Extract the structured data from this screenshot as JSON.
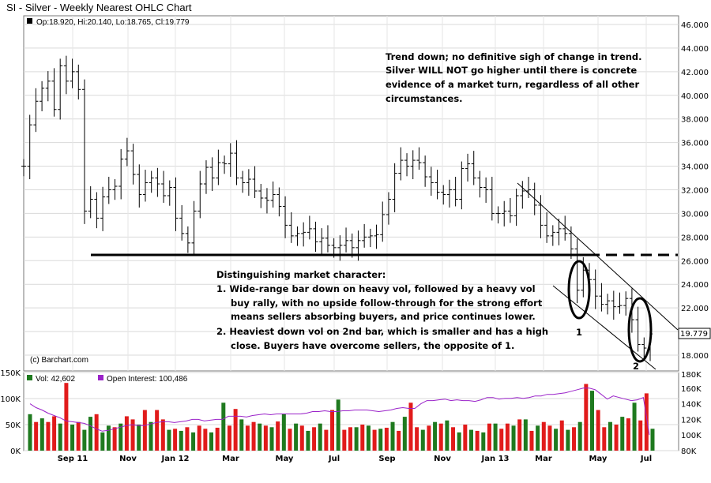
{
  "chart_data": {
    "type": "ohlc",
    "title": "SI - Silver - Weekly Nearest OHLC Chart",
    "legend_ohlc": "Op:18.920, Hi:20.140, Lo:18.765, Cl:19.779",
    "last_price_label": "19.779",
    "credit": "(c) Barchart.com",
    "price_axis": {
      "ticks": [
        "46.000",
        "44.000",
        "42.000",
        "40.000",
        "38.000",
        "36.000",
        "34.000",
        "32.000",
        "30.000",
        "28.000",
        "26.000",
        "24.000",
        "22.000",
        "20.000",
        "18.000"
      ],
      "min": 17.0,
      "max": 46.8
    },
    "x_ticks": [
      "Sep 11",
      "Nov",
      "Jan 12",
      "Mar",
      "May",
      "Jul",
      "Sep",
      "Nov",
      "Jan 13",
      "Mar",
      "May",
      "Jul"
    ],
    "price_close": [
      34.0,
      37.5,
      39.5,
      40.6,
      41.2,
      38.8,
      42.5,
      41.2,
      42.0,
      40.5,
      30.2,
      31.2,
      29.6,
      31.4,
      32.0,
      32.3,
      34.6,
      35.3,
      33.3,
      31.6,
      32.6,
      33.0,
      32.5,
      31.5,
      32.2,
      29.6,
      28.3,
      27.5,
      30.2,
      32.5,
      33.9,
      33.0,
      34.3,
      34.2,
      35.1,
      33.0,
      32.6,
      32.9,
      31.9,
      31.3,
      31.1,
      31.6,
      30.6,
      29.0,
      28.1,
      28.3,
      28.4,
      28.7,
      27.6,
      27.9,
      27.3,
      27.1,
      27.3,
      27.7,
      27.1,
      27.7,
      28.0,
      28.1,
      28.2,
      29.9,
      31.2,
      33.4,
      34.5,
      34.0,
      34.5,
      34.3,
      33.1,
      32.6,
      31.8,
      31.6,
      32.0,
      31.2,
      33.8,
      34.2,
      33.0,
      32.2,
      32.0,
      30.0,
      30.0,
      30.2,
      29.8,
      31.5,
      31.9,
      32.0,
      30.7,
      29.0,
      28.1,
      28.4,
      28.7,
      28.3,
      27.0,
      23.5,
      25.2,
      24.4,
      23.0,
      22.3,
      22.6,
      22.1,
      22.2,
      22.8,
      21.0,
      18.9,
      18.6,
      19.8
    ],
    "volume_axis": {
      "ticks": [
        "150K",
        "100K",
        "50K",
        "0K"
      ],
      "max": 150
    },
    "volume": {
      "label": "Vol: 42,602",
      "values": [
        70,
        55,
        62,
        55,
        66,
        52,
        130,
        50,
        55,
        40,
        65,
        70,
        35,
        48,
        45,
        52,
        66,
        60,
        50,
        78,
        55,
        78,
        60,
        40,
        42,
        38,
        45,
        35,
        48,
        42,
        35,
        44,
        92,
        48,
        80,
        60,
        48,
        55,
        52,
        48,
        45,
        56,
        70,
        42,
        52,
        48,
        38,
        45,
        52,
        40,
        78,
        98,
        40,
        45,
        45,
        50,
        48,
        40,
        42,
        44,
        55,
        38,
        65,
        92,
        45,
        40,
        48,
        55,
        52,
        58,
        45,
        35,
        50,
        40,
        38,
        35,
        52,
        52,
        42,
        52,
        48,
        60,
        60,
        38,
        48,
        55,
        48,
        42,
        58,
        40,
        45,
        55,
        128,
        115,
        78,
        45,
        55,
        50,
        65,
        62,
        92,
        58,
        110,
        42
      ],
      "colors": [
        "g",
        "r",
        "g",
        "r",
        "r",
        "g",
        "r",
        "g",
        "r",
        "g",
        "g",
        "r",
        "g",
        "g",
        "r",
        "g",
        "r",
        "r",
        "g",
        "r",
        "g",
        "r",
        "r",
        "g",
        "r",
        "g",
        "r",
        "g",
        "r",
        "r",
        "g",
        "r",
        "g",
        "r",
        "r",
        "g",
        "r",
        "r",
        "g",
        "r",
        "g",
        "r",
        "g",
        "r",
        "g",
        "r",
        "g",
        "r",
        "g",
        "r",
        "r",
        "g",
        "r",
        "r",
        "g",
        "r",
        "g",
        "r",
        "g",
        "r",
        "g",
        "r",
        "g",
        "r",
        "r",
        "g",
        "r",
        "g",
        "r",
        "g",
        "r",
        "g",
        "r",
        "g",
        "r",
        "g",
        "r",
        "g",
        "r",
        "r",
        "g",
        "r",
        "g",
        "r",
        "g",
        "r",
        "r",
        "g",
        "r",
        "g",
        "r",
        "g",
        "r",
        "g",
        "r",
        "r",
        "g",
        "r",
        "g",
        "r",
        "g",
        "r",
        "r",
        "g"
      ]
    },
    "open_interest": {
      "label": "Open Interest: 100,486",
      "axis_ticks": [
        "180K",
        "160K",
        "140K",
        "120K",
        "100K",
        "80K"
      ],
      "values": [
        140,
        135,
        132,
        128,
        125,
        122,
        118,
        117,
        116,
        115,
        112,
        108,
        105,
        106,
        108,
        110,
        112,
        113,
        112,
        112,
        114,
        116,
        117,
        117,
        116,
        117,
        118,
        120,
        120,
        118,
        119,
        120,
        120,
        124,
        124,
        124,
        123,
        125,
        126,
        127,
        126,
        127,
        127,
        127,
        127,
        127,
        128,
        130,
        130,
        131,
        130,
        130,
        131,
        131,
        132,
        132,
        132,
        131,
        130,
        131,
        132,
        134,
        135,
        134,
        134,
        140,
        144,
        144,
        145,
        146,
        144,
        145,
        144,
        144,
        143,
        145,
        148,
        148,
        146,
        147,
        147,
        148,
        147,
        148,
        150,
        150,
        152,
        152,
        153,
        154,
        156,
        158,
        160,
        160,
        158,
        152,
        146,
        150,
        148,
        146,
        144,
        145,
        148,
        100
      ]
    }
  },
  "annotations": {
    "top_note": [
      "Trend down; no definitive sigh of change in trend.",
      "Silver WILL NOT go higher until there is concrete",
      "evidence of a market turn, regardless of all other",
      "circumstances."
    ],
    "middle_note": [
      "Distinguishing market character:",
      "1. Wide-range bar down on heavy vol, followed by a heavy vol",
      "buy rally, with no upside follow-through for the strong effort",
      "means sellers absorbing buyers, and price continues lower.",
      "2. Heaviest down vol on 2nd bar, which is smaller and has a high",
      "close.  Buyers have overcome sellers, the opposite of 1."
    ],
    "label_1": "1",
    "label_2": "2"
  },
  "colors": {
    "volume_green": "#1f7a1f",
    "volume_red": "#e11b1b",
    "open_interest": "#9a22c9",
    "plot_bg": "#ffffff",
    "last_price_box": "#ffffff"
  }
}
